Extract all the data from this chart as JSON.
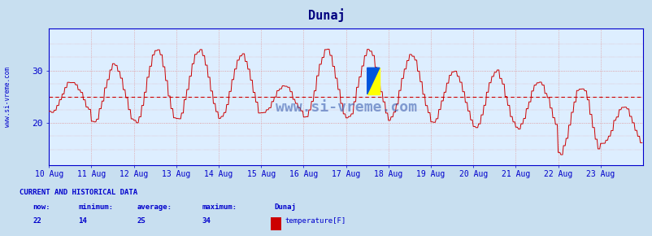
{
  "title": "Dunaj",
  "title_color": "#000080",
  "bg_color": "#c8dff0",
  "plot_bg_color": "#ddeeff",
  "line_color": "#cc0000",
  "axis_color": "#0000cc",
  "grid_color": "#dd8888",
  "avg_line_color": "#cc0000",
  "ylabel_text": "www.si-vreme.com",
  "watermark": "www.si-vreme.com",
  "watermark_color": "#3355aa",
  "xticklabels": [
    "10 Aug",
    "11 Aug",
    "12 Aug",
    "13 Aug",
    "14 Aug",
    "15 Aug",
    "16 Aug",
    "17 Aug",
    "18 Aug",
    "19 Aug",
    "20 Aug",
    "21 Aug",
    "22 Aug",
    "23 Aug"
  ],
  "ymin": 12,
  "ymax": 38,
  "yticks": [
    20,
    30
  ],
  "avg_value": 25,
  "now": 22,
  "minimum": 14,
  "average": 25,
  "maximum": 34,
  "legend_label": "temperature[F]",
  "legend_color": "#cc0000",
  "footer_color": "#0000cc",
  "footer_title": "CURRENT AND HISTORICAL DATA",
  "num_points": 672,
  "points_per_day": 48
}
